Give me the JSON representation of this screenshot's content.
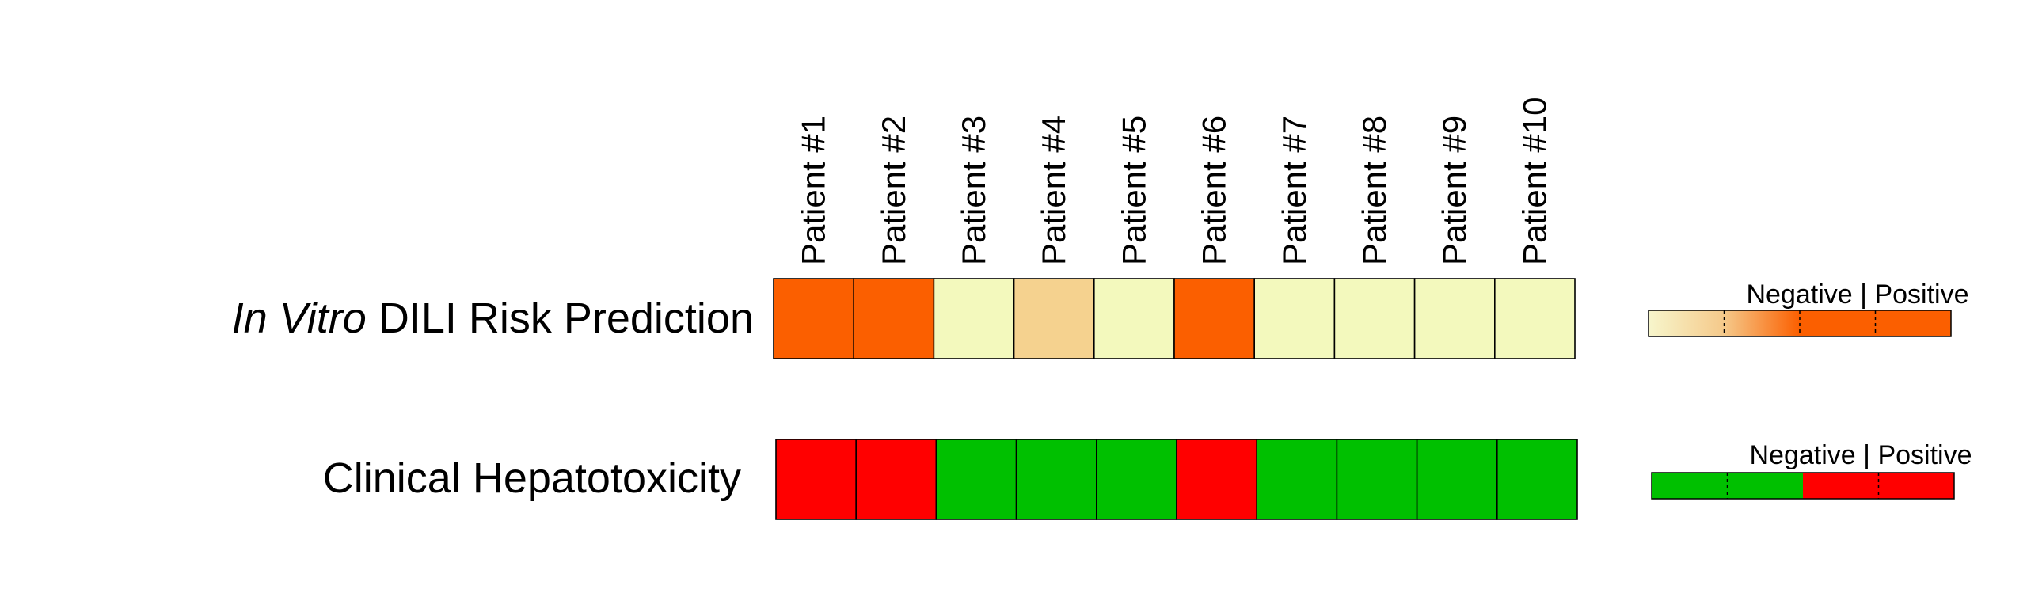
{
  "chart_data": {
    "type": "heatmap",
    "columns": [
      "Patient #1",
      "Patient #2",
      "Patient #3",
      "Patient #4",
      "Patient #5",
      "Patient #6",
      "Patient #7",
      "Patient #8",
      "Patient #9",
      "Patient #10"
    ],
    "rows": [
      {
        "label_italic": "In Vitro",
        "label_rest": " DILI Risk Prediction",
        "values": [
          "positive",
          "positive",
          "negative",
          "borderline",
          "negative",
          "positive",
          "negative",
          "negative",
          "negative",
          "negative"
        ],
        "legend": {
          "negative": "Negative",
          "separator": "|",
          "positive": "Positive"
        }
      },
      {
        "label_italic": "",
        "label_rest": "Clinical Hepatotoxicity",
        "values": [
          "positive",
          "positive",
          "negative",
          "negative",
          "negative",
          "positive",
          "negative",
          "negative",
          "negative",
          "negative"
        ],
        "legend": {
          "negative": "Negative",
          "separator": "|",
          "positive": "Positive"
        }
      }
    ],
    "colors": {
      "prediction": {
        "negative": "#f3f9bd",
        "borderline": "#f5d28f",
        "positive": "#fb5f00"
      },
      "clinical": {
        "negative": "#00c000",
        "positive": "#ff0000"
      }
    }
  }
}
